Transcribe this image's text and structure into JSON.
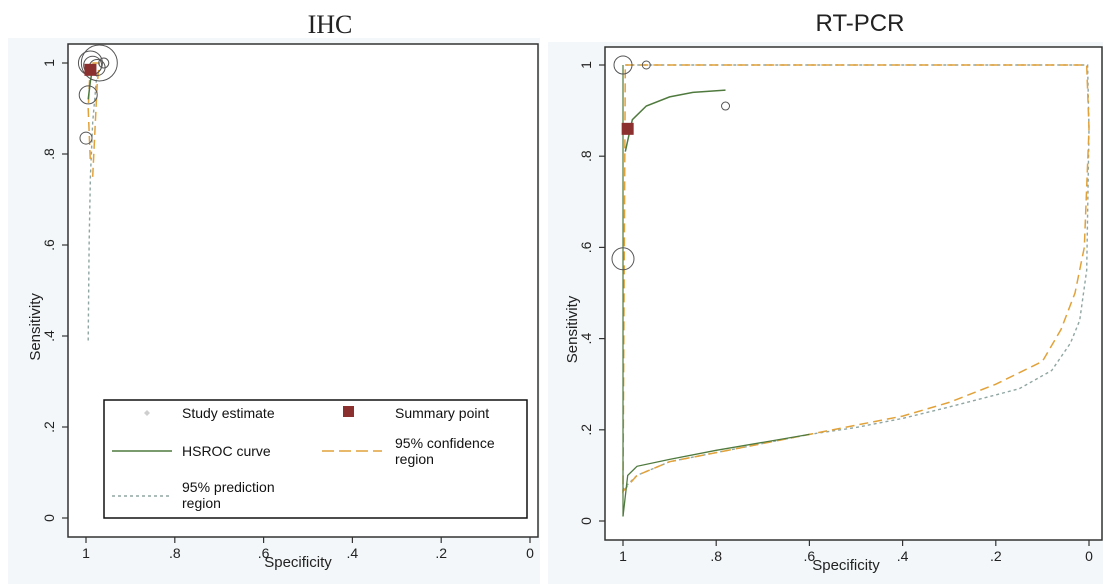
{
  "chart_data": [
    {
      "type": "scatter",
      "title": "IHC",
      "xlabel": "Specificity",
      "ylabel": "Sensitivity",
      "xlim": [
        1,
        0
      ],
      "ylim": [
        0,
        1
      ],
      "x_ticks": [
        "1",
        ".8",
        ".6",
        ".4",
        ".2",
        "0"
      ],
      "y_ticks": [
        "0",
        ".2",
        ".4",
        ".6",
        ".8",
        "1"
      ],
      "study_estimates": [
        {
          "spec": 0.97,
          "sens": 1.0,
          "size": 18
        },
        {
          "spec": 0.99,
          "sens": 1.0,
          "size": 12
        },
        {
          "spec": 0.985,
          "sens": 0.995,
          "size": 9
        },
        {
          "spec": 0.975,
          "sens": 0.99,
          "size": 8
        },
        {
          "spec": 0.995,
          "sens": 0.93,
          "size": 9
        },
        {
          "spec": 1.0,
          "sens": 0.835,
          "size": 6
        },
        {
          "spec": 0.96,
          "sens": 1.0,
          "size": 5
        }
      ],
      "summary_point": {
        "spec": 0.99,
        "sens": 0.985
      },
      "hsroc_curve": [
        [
          0.995,
          0.92
        ],
        [
          0.99,
          0.96
        ],
        [
          0.985,
          0.99
        ]
      ],
      "confidence_region": [
        [
          0.985,
          0.75
        ],
        [
          0.98,
          0.85
        ],
        [
          0.975,
          0.95
        ],
        [
          0.97,
          1.0
        ],
        [
          0.99,
          1.0
        ],
        [
          0.995,
          0.9
        ],
        [
          0.99,
          0.78
        ]
      ],
      "prediction_region": [
        [
          0.995,
          0.39
        ],
        [
          0.993,
          0.6
        ],
        [
          0.99,
          0.75
        ],
        [
          0.985,
          0.87
        ],
        [
          0.975,
          0.98
        ]
      ],
      "legend": {
        "placement": "bottom",
        "items": [
          {
            "label": "Study estimate",
            "marker": "diamond",
            "color": "#bbbbbb"
          },
          {
            "label": "Summary point",
            "marker": "square",
            "color": "#8b2f2f"
          },
          {
            "label": "HSROC curve",
            "marker": "line",
            "color": "#4f7a3e"
          },
          {
            "label": "95% confidence region",
            "marker": "dash",
            "color": "#e2a23a"
          },
          {
            "label": "95% prediction region",
            "marker": "dot",
            "color": "#8fa6a2"
          }
        ]
      }
    },
    {
      "type": "scatter",
      "title": "RT-PCR",
      "xlabel": "Specificity",
      "ylabel": "Sensitivity",
      "xlim": [
        1,
        0
      ],
      "ylim": [
        0,
        1
      ],
      "x_ticks": [
        "1",
        ".8",
        ".6",
        ".4",
        ".2",
        "0"
      ],
      "y_ticks": [
        "0",
        ".2",
        ".4",
        ".6",
        ".8",
        "1"
      ],
      "study_estimates": [
        {
          "spec": 1.0,
          "sens": 1.0,
          "size": 9
        },
        {
          "spec": 0.95,
          "sens": 1.0,
          "size": 4
        },
        {
          "spec": 0.78,
          "sens": 0.91,
          "size": 4
        },
        {
          "spec": 1.0,
          "sens": 0.575,
          "size": 11
        }
      ],
      "summary_point": {
        "spec": 0.99,
        "sens": 0.86
      },
      "hsroc_curve": [
        [
          0.995,
          0.81
        ],
        [
          0.98,
          0.88
        ],
        [
          0.95,
          0.91
        ],
        [
          0.9,
          0.93
        ],
        [
          0.85,
          0.94
        ],
        [
          0.78,
          0.945
        ]
      ],
      "confidence_region": [
        [
          0.995,
          1.0
        ],
        [
          0.005,
          1.0
        ],
        [
          0.0,
          0.86
        ],
        [
          0.01,
          0.6
        ],
        [
          0.03,
          0.5
        ],
        [
          0.06,
          0.42
        ],
        [
          0.1,
          0.35
        ],
        [
          0.2,
          0.3
        ],
        [
          0.3,
          0.26
        ],
        [
          0.4,
          0.23
        ],
        [
          0.5,
          0.21
        ],
        [
          0.6,
          0.19
        ],
        [
          0.7,
          0.17
        ],
        [
          0.8,
          0.15
        ],
        [
          0.9,
          0.13
        ],
        [
          0.97,
          0.1
        ],
        [
          1.0,
          0.065
        ],
        [
          0.995,
          1.0
        ]
      ],
      "prediction_region": [
        [
          0.995,
          1.0
        ],
        [
          0.003,
          1.0
        ],
        [
          0.0,
          0.86
        ],
        [
          0.005,
          0.55
        ],
        [
          0.02,
          0.44
        ],
        [
          0.04,
          0.39
        ],
        [
          0.08,
          0.33
        ],
        [
          0.15,
          0.29
        ],
        [
          0.3,
          0.25
        ],
        [
          0.4,
          0.225
        ],
        [
          0.5,
          0.205
        ],
        [
          0.6,
          0.19
        ],
        [
          0.7,
          0.17
        ],
        [
          0.8,
          0.15
        ],
        [
          0.9,
          0.13
        ],
        [
          0.97,
          0.1
        ],
        [
          1.0,
          0.07
        ]
      ],
      "hsroc_full": [
        [
          1.0,
          0.01
        ],
        [
          0.99,
          0.1
        ],
        [
          0.97,
          0.12
        ],
        [
          0.9,
          0.135
        ],
        [
          0.8,
          0.155
        ],
        [
          0.6,
          0.19
        ]
      ]
    }
  ]
}
